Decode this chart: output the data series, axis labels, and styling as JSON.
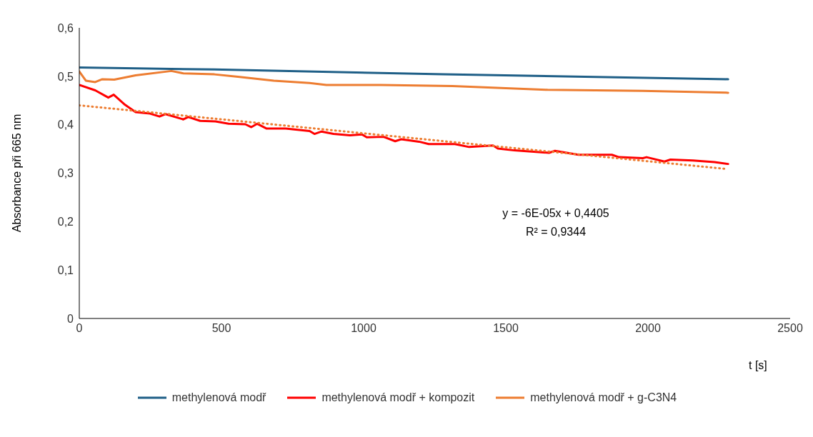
{
  "chart_data": {
    "type": "line",
    "ylabel": "Absorbance při 665 nm",
    "xlabel": "t [s]",
    "xlim": [
      0,
      2500
    ],
    "xticks": [
      0,
      500,
      1000,
      1500,
      2000,
      2500
    ],
    "ylim": [
      0,
      0.6
    ],
    "yticks": [
      {
        "value": 0,
        "label": "0"
      },
      {
        "value": 0.1,
        "label": "0,1"
      },
      {
        "value": 0.2,
        "label": "0,2"
      },
      {
        "value": 0.3,
        "label": "0,3"
      },
      {
        "value": 0.4,
        "label": "0,4"
      },
      {
        "value": 0.5,
        "label": "0,5"
      },
      {
        "value": 0.6,
        "label": "0,6"
      }
    ],
    "legend": "bottom",
    "marker": "none",
    "annotations": [
      "y = -6E-05x + 0,4405",
      "R² = 0,9344"
    ],
    "series": [
      {
        "name": "methylenová modř",
        "color": "#1f5f87",
        "x": [
          0,
          475,
          1279,
          2282
        ],
        "values": [
          0.518,
          0.514,
          0.504,
          0.494
        ]
      },
      {
        "name": "methylenová modř + kompozit",
        "color": "#ff0000",
        "x": [
          0,
          56,
          102,
          121,
          161,
          198,
          249,
          282,
          303,
          366,
          383,
          425,
          479,
          525,
          584,
          605,
          626,
          659,
          726,
          810,
          827,
          852,
          894,
          952,
          994,
          1011,
          1070,
          1111,
          1132,
          1195,
          1229,
          1321,
          1371,
          1455,
          1472,
          1530,
          1652,
          1673,
          1756,
          1873,
          1898,
          1982,
          1995,
          2058,
          2079,
          2158,
          2234,
          2282
        ],
        "values": [
          0.482,
          0.471,
          0.456,
          0.462,
          0.441,
          0.426,
          0.423,
          0.417,
          0.422,
          0.411,
          0.416,
          0.408,
          0.407,
          0.402,
          0.401,
          0.395,
          0.402,
          0.392,
          0.392,
          0.387,
          0.381,
          0.386,
          0.381,
          0.378,
          0.38,
          0.374,
          0.375,
          0.366,
          0.37,
          0.365,
          0.36,
          0.36,
          0.354,
          0.357,
          0.351,
          0.347,
          0.342,
          0.346,
          0.338,
          0.338,
          0.333,
          0.331,
          0.333,
          0.324,
          0.328,
          0.326,
          0.323,
          0.319
        ]
      },
      {
        "name": "methylenová modř + g-C3N4",
        "color": "#ed7d31",
        "x": [
          0,
          23,
          56,
          81,
          123,
          198,
          324,
          366,
          475,
          558,
          684,
          810,
          869,
          1061,
          1312,
          1647,
          1982,
          2282
        ],
        "values": [
          0.51,
          0.491,
          0.488,
          0.494,
          0.493,
          0.502,
          0.511,
          0.506,
          0.504,
          0.499,
          0.491,
          0.486,
          0.482,
          0.482,
          0.48,
          0.472,
          0.47,
          0.466
        ]
      },
      {
        "color": "#ed7d31",
        "line_style": "dotted",
        "x": [
          0,
          2270
        ],
        "values": [
          0.44,
          0.309
        ]
      }
    ]
  }
}
